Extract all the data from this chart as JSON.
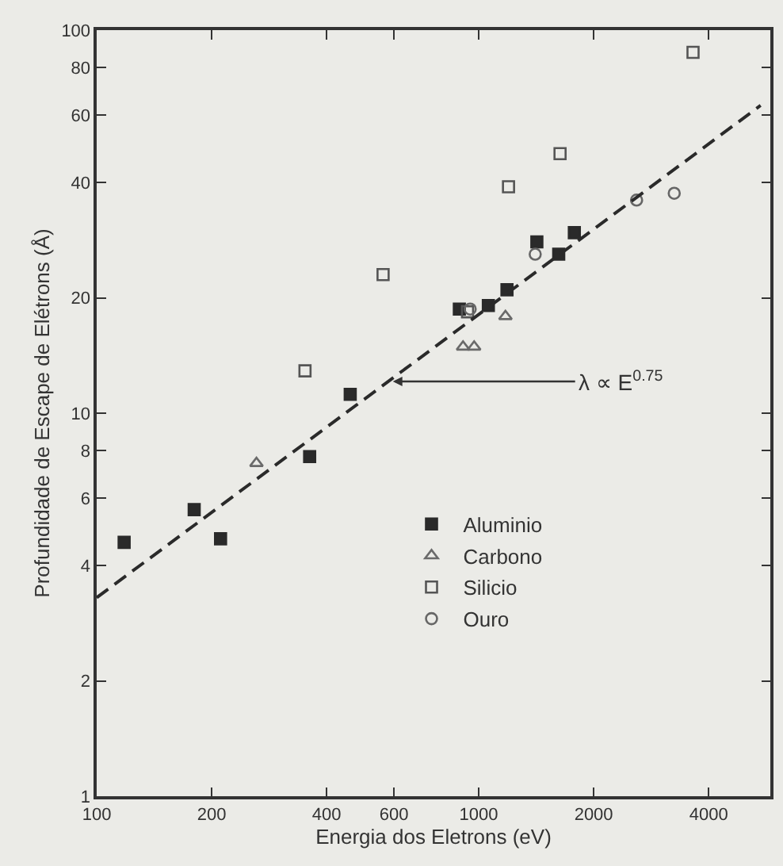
{
  "chart_data": {
    "type": "scatter",
    "xlabel": "Energia dos Eletrons (eV)",
    "ylabel": "Profundidade de Escape de Elétrons (Å)",
    "log": "xy",
    "grid": false,
    "legend": "bottom right",
    "xlim": [
      100,
      5800
    ],
    "xticks": [
      100,
      200,
      400,
      600,
      1000,
      2000,
      4000
    ],
    "ylim": [
      1,
      100
    ],
    "yticks": [
      1,
      2,
      4,
      6,
      8,
      10,
      20,
      40,
      60,
      80,
      100
    ],
    "series": [
      {
        "name": "Aluminio",
        "color": "#2a2a2a",
        "marker": "square",
        "x": [
          118,
          180,
          211,
          361,
          461,
          890,
          1060,
          1186,
          1420,
          1620,
          1780
        ],
        "values": [
          4.6,
          5.6,
          4.7,
          7.7,
          11.2,
          18.7,
          19.1,
          21,
          28,
          26,
          29.6
        ]
      },
      {
        "name": "Carbono",
        "color": "#6a6a6a",
        "marker": "triangle-open",
        "x": [
          262,
          910,
          973,
          1175
        ],
        "values": [
          7.4,
          14.9,
          14.9,
          17.9
        ]
      },
      {
        "name": "Silicio",
        "color": "#555555",
        "marker": "square-open",
        "x": [
          351,
          562,
          935,
          1197,
          1633,
          3640
        ],
        "values": [
          12.9,
          23,
          18.4,
          39,
          47.6,
          87.5
        ]
      },
      {
        "name": "Ouro",
        "color": "#666666",
        "marker": "circle-open",
        "x": [
          950,
          1406,
          2590,
          3250
        ],
        "values": [
          18.7,
          26,
          36,
          37.5
        ]
      },
      {
        "type": "line",
        "color": "#2a2a2a",
        "line_style": "dashed",
        "x": [
          100,
          5470
        ],
        "values": [
          3.3,
          63.6
        ]
      }
    ],
    "annotations": [
      {
        "text": "λ ∝ E$^{0.75}$",
        "x": 596,
        "y": 12.1
      }
    ]
  }
}
